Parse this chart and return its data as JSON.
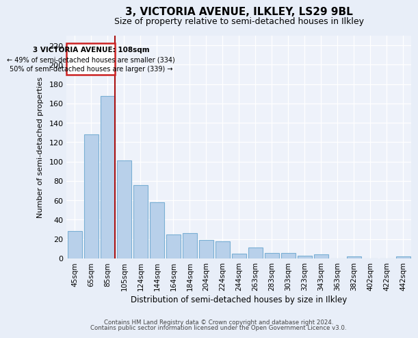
{
  "title": "3, VICTORIA AVENUE, ILKLEY, LS29 9BL",
  "subtitle": "Size of property relative to semi-detached houses in Ilkley",
  "xlabel": "Distribution of semi-detached houses by size in Ilkley",
  "ylabel": "Number of semi-detached properties",
  "footer_line1": "Contains HM Land Registry data © Crown copyright and database right 2024.",
  "footer_line2": "Contains public sector information licensed under the Open Government Licence v3.0.",
  "categories": [
    "45sqm",
    "65sqm",
    "85sqm",
    "105sqm",
    "124sqm",
    "144sqm",
    "164sqm",
    "184sqm",
    "204sqm",
    "224sqm",
    "244sqm",
    "263sqm",
    "283sqm",
    "303sqm",
    "323sqm",
    "343sqm",
    "363sqm",
    "382sqm",
    "402sqm",
    "422sqm",
    "442sqm"
  ],
  "values": [
    28,
    128,
    168,
    101,
    76,
    58,
    25,
    26,
    19,
    18,
    5,
    11,
    6,
    6,
    3,
    4,
    0,
    2,
    0,
    0,
    2
  ],
  "bar_color": "#b8d0ea",
  "bar_edgecolor": "#7aafd4",
  "background_color": "#e8eef8",
  "plot_background": "#eef2fa",
  "annotation_box_color": "#cc2222",
  "annotation_line_color": "#aa1111",
  "annotation_title": "3 VICTORIA AVENUE: 108sqm",
  "annotation_line1": "← 49% of semi-detached houses are smaller (334)",
  "annotation_line2": "50% of semi-detached houses are larger (339) →",
  "vline_bin_index": 2,
  "ylim": [
    0,
    230
  ],
  "yticks": [
    0,
    20,
    40,
    60,
    80,
    100,
    120,
    140,
    160,
    180,
    200,
    220
  ]
}
